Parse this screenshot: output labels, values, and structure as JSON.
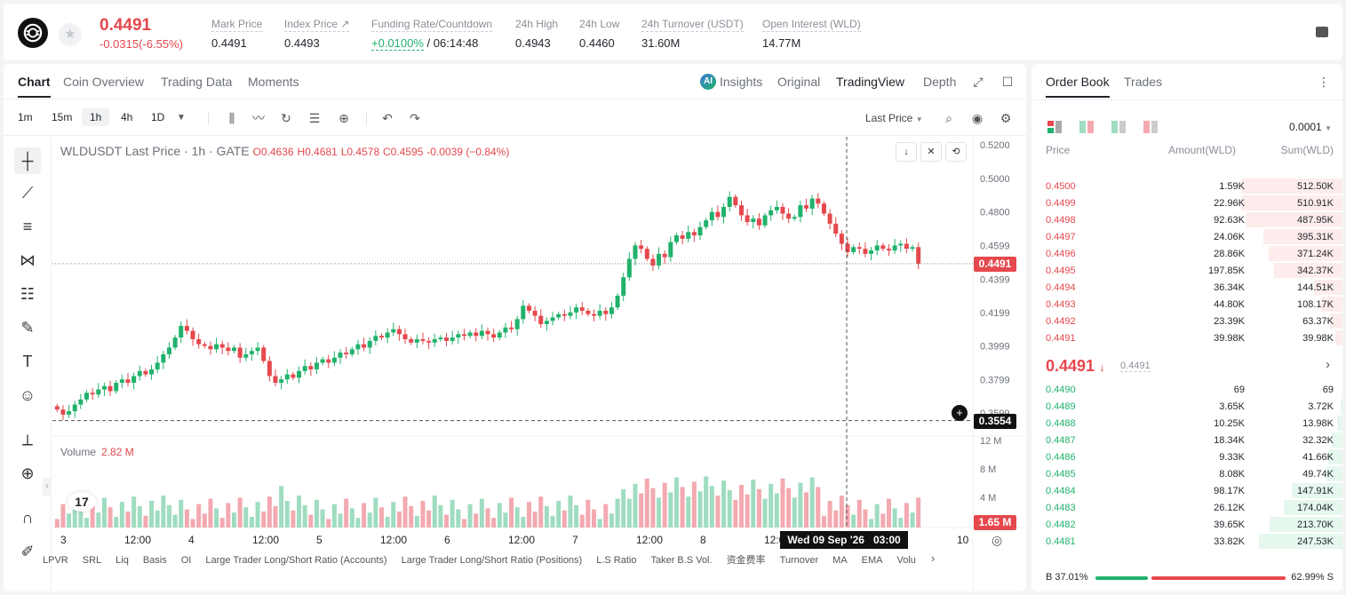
{
  "ticker": {
    "price": "0.4491",
    "change": "-0.0315(-6.55%)",
    "stats": [
      {
        "label": "Mark Price",
        "value": "0.4491"
      },
      {
        "label": "Index Price ↗",
        "value": "0.4493"
      },
      {
        "label": "Funding Rate/Countdown",
        "rate": "+0.0100%",
        "countdown": "/ 06:14:48"
      },
      {
        "label": "24h High",
        "value": "0.4943"
      },
      {
        "label": "24h Low",
        "value": "0.4460"
      },
      {
        "label": "24h Turnover (USDT)",
        "value": "31.60M"
      },
      {
        "label": "Open Interest (WLD)",
        "value": "14.77M"
      }
    ]
  },
  "chart_tabs": [
    "Chart",
    "Coin Overview",
    "Trading Data",
    "Moments"
  ],
  "chart_views": [
    "Insights",
    "Original",
    "TradingView",
    "Depth"
  ],
  "intervals": [
    "1m",
    "15m",
    "1h",
    "4h",
    "1D"
  ],
  "selected_interval": "1h",
  "price_source": "Last Price",
  "legend": {
    "symbol": "WLDUSDT Last Price · 1h · GATE",
    "open": "O0.4636",
    "high": "H0.4681",
    "low": "L0.4578",
    "close": "C0.4595",
    "change": "-0.0039 (−0.84%)"
  },
  "volume": {
    "label": "Volume",
    "value": "2.82 M"
  },
  "chart_data": {
    "type": "candlestick",
    "price_axis": [
      "0.5200",
      "0.5000",
      "0.4800",
      "0.4599",
      "0.4399",
      "0.4199",
      "0.3999",
      "0.3799",
      "0.3599"
    ],
    "volume_axis": [
      "12 M",
      "8 M",
      "4 M"
    ],
    "x_labels": [
      "3",
      "12:00",
      "4",
      "12:00",
      "5",
      "12:00",
      "6",
      "12:00",
      "7",
      "12:00",
      "8",
      "12:00",
      "10"
    ],
    "last_price_tag": "0.4491",
    "crosshair_price_tag": "0.3554",
    "volume_tag": "1.65 M",
    "crosshair_time": "Wed 09 Sep '26   03:00",
    "closes": [
      0.362,
      0.359,
      0.361,
      0.365,
      0.368,
      0.372,
      0.371,
      0.374,
      0.376,
      0.373,
      0.378,
      0.38,
      0.378,
      0.382,
      0.385,
      0.383,
      0.386,
      0.39,
      0.395,
      0.399,
      0.405,
      0.412,
      0.409,
      0.404,
      0.401,
      0.4,
      0.398,
      0.401,
      0.399,
      0.397,
      0.399,
      0.393,
      0.395,
      0.397,
      0.399,
      0.391,
      0.382,
      0.378,
      0.38,
      0.383,
      0.381,
      0.385,
      0.388,
      0.386,
      0.39,
      0.392,
      0.39,
      0.393,
      0.396,
      0.395,
      0.398,
      0.401,
      0.399,
      0.403,
      0.406,
      0.405,
      0.408,
      0.41,
      0.407,
      0.404,
      0.402,
      0.404,
      0.403,
      0.402,
      0.404,
      0.405,
      0.403,
      0.405,
      0.407,
      0.406,
      0.408,
      0.406,
      0.409,
      0.407,
      0.405,
      0.408,
      0.411,
      0.41,
      0.416,
      0.424,
      0.421,
      0.418,
      0.413,
      0.415,
      0.417,
      0.419,
      0.418,
      0.42,
      0.423,
      0.421,
      0.419,
      0.418,
      0.421,
      0.419,
      0.423,
      0.43,
      0.441,
      0.452,
      0.46,
      0.458,
      0.452,
      0.448,
      0.455,
      0.453,
      0.462,
      0.466,
      0.464,
      0.468,
      0.466,
      0.471,
      0.475,
      0.48,
      0.477,
      0.483,
      0.489,
      0.484,
      0.478,
      0.474,
      0.476,
      0.472,
      0.478,
      0.481,
      0.483,
      0.479,
      0.476,
      0.477,
      0.484,
      0.482,
      0.488,
      0.485,
      0.479,
      0.473,
      0.467,
      0.461,
      0.456,
      0.459,
      0.458,
      0.455,
      0.457,
      0.46,
      0.458,
      0.457,
      0.46,
      0.461,
      0.458,
      0.459,
      0.4491
    ]
  },
  "indicators": [
    "LPVR",
    "SRL",
    "Liq",
    "Basis",
    "OI",
    "Large Trader Long/Short Ratio (Accounts)",
    "Large Trader Long/Short Ratio (Positions)",
    "L.S Ratio",
    "Taker B.S Vol.",
    "资金费率",
    "Turnover",
    "MA",
    "EMA",
    "Volu"
  ],
  "orderbook": {
    "tabs": [
      "Order Book",
      "Trades"
    ],
    "precision": "0.0001",
    "headers": [
      "Price",
      "Amount(WLD)",
      "Sum(WLD)"
    ],
    "asks": [
      {
        "price": "0.4500",
        "amount": "1.59K",
        "sum": "512.50K",
        "depth": 0.95
      },
      {
        "price": "0.4499",
        "amount": "22.96K",
        "sum": "510.91K",
        "depth": 0.95
      },
      {
        "price": "0.4498",
        "amount": "92.63K",
        "sum": "487.95K",
        "depth": 0.91
      },
      {
        "price": "0.4497",
        "amount": "24.06K",
        "sum": "395.31K",
        "depth": 0.74
      },
      {
        "price": "0.4496",
        "amount": "28.86K",
        "sum": "371.24K",
        "depth": 0.69
      },
      {
        "price": "0.4495",
        "amount": "197.85K",
        "sum": "342.37K",
        "depth": 0.64
      },
      {
        "price": "0.4494",
        "amount": "36.34K",
        "sum": "144.51K",
        "depth": 0.27
      },
      {
        "price": "0.4493",
        "amount": "44.80K",
        "sum": "108.17K",
        "depth": 0.2
      },
      {
        "price": "0.4492",
        "amount": "23.39K",
        "sum": "63.37K",
        "depth": 0.12
      },
      {
        "price": "0.4491",
        "amount": "39.98K",
        "sum": "39.98K",
        "depth": 0.07
      }
    ],
    "mid_price": "0.4491",
    "mid_sub": "0.4491",
    "bids": [
      {
        "price": "0.4490",
        "amount": "69",
        "sum": "69",
        "depth": 0.0
      },
      {
        "price": "0.4489",
        "amount": "3.65K",
        "sum": "3.72K",
        "depth": 0.01
      },
      {
        "price": "0.4488",
        "amount": "10.25K",
        "sum": "13.98K",
        "depth": 0.03
      },
      {
        "price": "0.4487",
        "amount": "18.34K",
        "sum": "32.32K",
        "depth": 0.06
      },
      {
        "price": "0.4486",
        "amount": "9.33K",
        "sum": "41.66K",
        "depth": 0.08
      },
      {
        "price": "0.4485",
        "amount": "8.08K",
        "sum": "49.74K",
        "depth": 0.09
      },
      {
        "price": "0.4484",
        "amount": "98.17K",
        "sum": "147.91K",
        "depth": 0.28
      },
      {
        "price": "0.4483",
        "amount": "26.12K",
        "sum": "174.04K",
        "depth": 0.32
      },
      {
        "price": "0.4482",
        "amount": "39.65K",
        "sum": "213.70K",
        "depth": 0.4
      },
      {
        "price": "0.4481",
        "amount": "33.82K",
        "sum": "247.53K",
        "depth": 0.46
      }
    ],
    "buy_ratio": "B 37.01%",
    "sell_ratio": "62.99% S",
    "buy_fraction": 0.3701
  },
  "colors": {
    "up": "#20b26c",
    "down": "#e5484d",
    "volUp": "#9fdcc0",
    "volDown": "#f3a9b0"
  }
}
